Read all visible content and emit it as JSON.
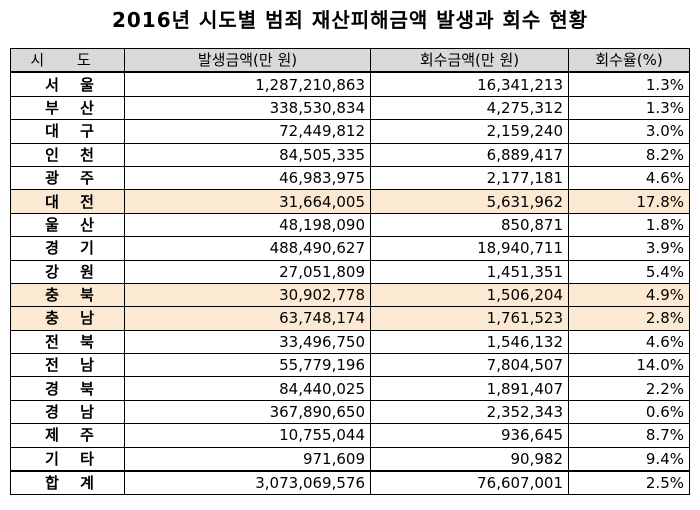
{
  "title": "2016년 시도별 범죄 재산피해금액 발생과 회수 현황",
  "table": {
    "headers": [
      "시 도",
      "발생금액(만 원)",
      "회수금액(만 원)",
      "회수율(%)"
    ],
    "rows": [
      {
        "region": "서 울",
        "occurred": "1,287,210,863",
        "recovered": "16,341,213",
        "rate": "1.3%",
        "highlight": false
      },
      {
        "region": "부 산",
        "occurred": "338,530,834",
        "recovered": "4,275,312",
        "rate": "1.3%",
        "highlight": false
      },
      {
        "region": "대 구",
        "occurred": "72,449,812",
        "recovered": "2,159,240",
        "rate": "3.0%",
        "highlight": false
      },
      {
        "region": "인 천",
        "occurred": "84,505,335",
        "recovered": "6,889,417",
        "rate": "8.2%",
        "highlight": false
      },
      {
        "region": "광 주",
        "occurred": "46,983,975",
        "recovered": "2,177,181",
        "rate": "4.6%",
        "highlight": false
      },
      {
        "region": "대 전",
        "occurred": "31,664,005",
        "recovered": "5,631,962",
        "rate": "17.8%",
        "highlight": true
      },
      {
        "region": "울 산",
        "occurred": "48,198,090",
        "recovered": "850,871",
        "rate": "1.8%",
        "highlight": false
      },
      {
        "region": "경 기",
        "occurred": "488,490,627",
        "recovered": "18,940,711",
        "rate": "3.9%",
        "highlight": false
      },
      {
        "region": "강 원",
        "occurred": "27,051,809",
        "recovered": "1,451,351",
        "rate": "5.4%",
        "highlight": false
      },
      {
        "region": "충 북",
        "occurred": "30,902,778",
        "recovered": "1,506,204",
        "rate": "4.9%",
        "highlight": true
      },
      {
        "region": "충 남",
        "occurred": "63,748,174",
        "recovered": "1,761,523",
        "rate": "2.8%",
        "highlight": true
      },
      {
        "region": "전 북",
        "occurred": "33,496,750",
        "recovered": "1,546,132",
        "rate": "4.6%",
        "highlight": false
      },
      {
        "region": "전 남",
        "occurred": "55,779,196",
        "recovered": "7,804,507",
        "rate": "14.0%",
        "highlight": false
      },
      {
        "region": "경 북",
        "occurred": "84,440,025",
        "recovered": "1,891,407",
        "rate": "2.2%",
        "highlight": false
      },
      {
        "region": "경 남",
        "occurred": "367,890,650",
        "recovered": "2,352,343",
        "rate": "0.6%",
        "highlight": false
      },
      {
        "region": "제 주",
        "occurred": "10,755,044",
        "recovered": "936,645",
        "rate": "8.7%",
        "highlight": false
      },
      {
        "region": "기 타",
        "occurred": "971,609",
        "recovered": "90,982",
        "rate": "9.4%",
        "highlight": false
      }
    ],
    "total": {
      "region": "합 계",
      "occurred": "3,073,069,576",
      "recovered": "76,607,001",
      "rate": "2.5%"
    }
  },
  "colors": {
    "header_bg": "#d9d9d9",
    "highlight_bg": "#fce9d3",
    "border": "#000000"
  }
}
